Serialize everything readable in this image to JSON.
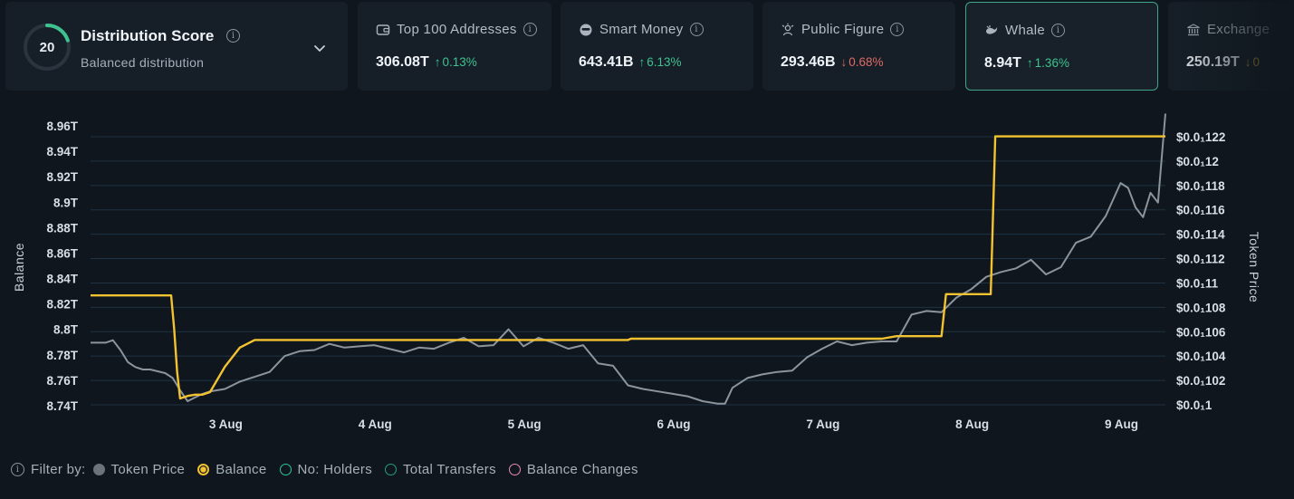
{
  "distribution": {
    "score": "20",
    "score_fraction": 0.2,
    "title": "Distribution Score",
    "subtitle": "Balanced distribution",
    "info_glyph": "i"
  },
  "cards": [
    {
      "label": "Top 100 Addresses",
      "icon": "wallet-icon",
      "value": "306.08T",
      "change": "0.13%",
      "direction": "up"
    },
    {
      "label": "Smart Money",
      "icon": "smart-money-icon",
      "value": "643.41B",
      "change": "6.13%",
      "direction": "up"
    },
    {
      "label": "Public Figure",
      "icon": "public-figure-icon",
      "value": "293.46B",
      "change": "0.68%",
      "direction": "down"
    },
    {
      "label": "Whale",
      "icon": "whale-icon",
      "value": "8.94T",
      "change": "1.36%",
      "direction": "up",
      "selected": true
    },
    {
      "label": "Exchange",
      "icon": "bank-icon",
      "value": "250.19T",
      "change": "0",
      "direction": "down"
    }
  ],
  "chart_data": {
    "type": "line",
    "x_tick_labels": [
      "3 Aug",
      "4 Aug",
      "5 Aug",
      "6 Aug",
      "7 Aug",
      "8 Aug",
      "9 Aug"
    ],
    "x_range_days": [
      2.1,
      9.3
    ],
    "left_axis": {
      "label": "Balance",
      "ticks": [
        "8.96T",
        "8.94T",
        "8.92T",
        "8.9T",
        "8.88T",
        "8.86T",
        "8.84T",
        "8.82T",
        "8.8T",
        "8.78T",
        "8.76T",
        "8.74T"
      ],
      "range": [
        8.74,
        8.96
      ],
      "unit": "T"
    },
    "right_axis": {
      "label": "Token Price",
      "ticks": [
        "$0.0₁122",
        "$0.0₁12",
        "$0.0₁118",
        "$0.0₁116",
        "$0.0₁114",
        "$0.0₁112",
        "$0.0₁11",
        "$0.0₁108",
        "$0.0₁106",
        "$0.0₁104",
        "$0.0₁102",
        "$0.0₁1"
      ],
      "range": [
        0.1,
        0.122
      ]
    },
    "series": [
      {
        "name": "Balance",
        "color": "#f2c230",
        "axis": "left",
        "x": [
          2.1,
          2.64,
          2.66,
          2.68,
          2.7,
          2.75,
          2.8,
          2.85,
          2.9,
          3.0,
          3.1,
          3.2,
          3.3,
          3.5,
          4.0,
          4.5,
          5.0,
          5.5,
          5.7,
          5.72,
          6.0,
          6.5,
          7.0,
          7.4,
          7.5,
          7.8,
          7.83,
          8.13,
          8.16,
          9.3
        ],
        "y": [
          8.826,
          8.826,
          8.8,
          8.766,
          8.745,
          8.747,
          8.748,
          8.748,
          8.75,
          8.77,
          8.785,
          8.791,
          8.791,
          8.791,
          8.791,
          8.791,
          8.791,
          8.791,
          8.791,
          8.792,
          8.792,
          8.792,
          8.792,
          8.792,
          8.794,
          8.794,
          8.827,
          8.827,
          8.951,
          8.951
        ]
      },
      {
        "name": "Token Price",
        "color": "#8c949c",
        "axis": "right",
        "x": [
          2.1,
          2.2,
          2.25,
          2.3,
          2.35,
          2.4,
          2.45,
          2.5,
          2.6,
          2.65,
          2.7,
          2.75,
          2.8,
          2.85,
          2.9,
          2.95,
          3.0,
          3.05,
          3.1,
          3.15,
          3.2,
          3.3,
          3.4,
          3.5,
          3.6,
          3.7,
          3.8,
          3.9,
          4.0,
          4.1,
          4.2,
          4.3,
          4.4,
          4.5,
          4.6,
          4.7,
          4.8,
          4.9,
          5.0,
          5.1,
          5.2,
          5.3,
          5.4,
          5.5,
          5.6,
          5.7,
          5.8,
          5.9,
          6.0,
          6.1,
          6.2,
          6.3,
          6.35,
          6.4,
          6.5,
          6.6,
          6.7,
          6.8,
          6.9,
          7.0,
          7.1,
          7.2,
          7.3,
          7.4,
          7.5,
          7.6,
          7.7,
          7.8,
          7.9,
          8.0,
          8.1,
          8.2,
          8.3,
          8.4,
          8.5,
          8.6,
          8.7,
          8.8,
          8.9,
          9.0,
          9.05,
          9.1,
          9.15,
          9.2,
          9.25,
          9.3
        ],
        "y": [
          0.1051,
          0.1051,
          0.1053,
          0.1045,
          0.1035,
          0.1031,
          0.1029,
          0.1029,
          0.1026,
          0.1022,
          0.1012,
          0.1003,
          0.1006,
          0.1009,
          0.1011,
          0.1012,
          0.1013,
          0.1016,
          0.1019,
          0.1021,
          0.1023,
          0.1027,
          0.104,
          0.1044,
          0.1045,
          0.105,
          0.1047,
          0.1048,
          0.1049,
          0.1046,
          0.1043,
          0.1047,
          0.1046,
          0.1051,
          0.1055,
          0.1048,
          0.1049,
          0.1062,
          0.1048,
          0.1055,
          0.1051,
          0.1046,
          0.1049,
          0.1034,
          0.1032,
          0.1016,
          0.1013,
          0.1011,
          0.1009,
          0.1007,
          0.1003,
          0.1001,
          0.1001,
          0.1014,
          0.1022,
          0.1025,
          0.1027,
          0.1028,
          0.1039,
          0.1046,
          0.1052,
          0.1049,
          0.1051,
          0.1052,
          0.1052,
          0.1074,
          0.1077,
          0.1076,
          0.1088,
          0.1095,
          0.1105,
          0.1109,
          0.1112,
          0.1119,
          0.1107,
          0.1113,
          0.1133,
          0.1138,
          0.1155,
          0.1182,
          0.1178,
          0.1162,
          0.1154,
          0.1174,
          0.1166,
          0.1239
        ]
      }
    ]
  },
  "legend": {
    "filter_label": "Filter by:",
    "items": [
      {
        "label": "Token Price",
        "color": "#6b737b",
        "style": "filled"
      },
      {
        "label": "Balance",
        "color": "#f2c230",
        "style": "selected"
      },
      {
        "label": "No: Holders",
        "color": "#2cc4a4",
        "style": "outline"
      },
      {
        "label": "Total Transfers",
        "color": "#1f9e88",
        "style": "outline"
      },
      {
        "label": "Balance Changes",
        "color": "#e88ab4",
        "style": "outline"
      }
    ]
  }
}
